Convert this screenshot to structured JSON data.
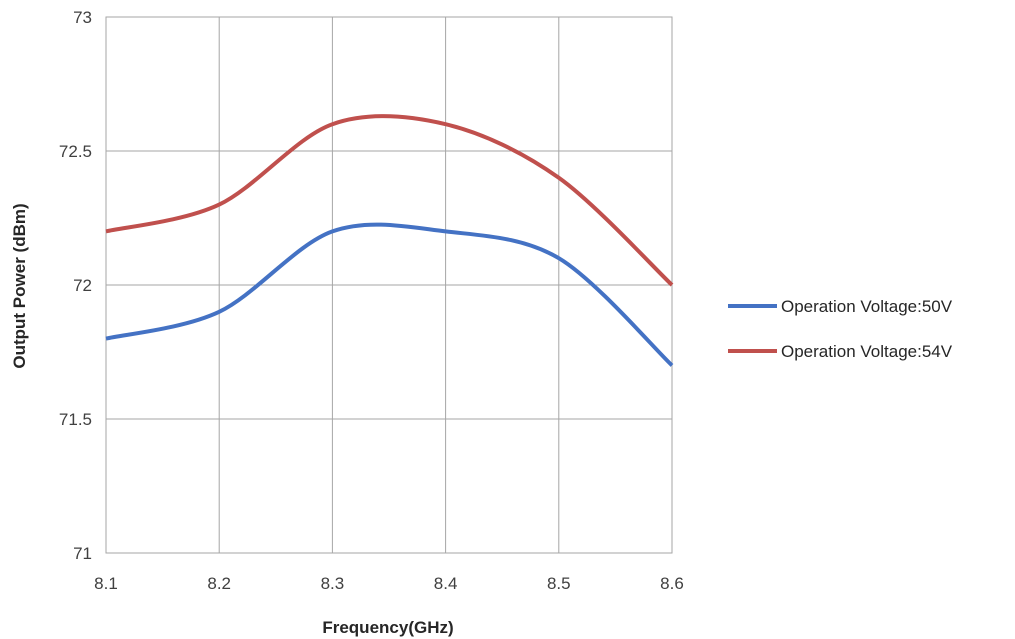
{
  "chart_data": {
    "type": "line",
    "title": "",
    "xlabel": "Frequency(GHz)",
    "ylabel": "Output Power (dBm)",
    "x": [
      8.1,
      8.2,
      8.3,
      8.4,
      8.5,
      8.6
    ],
    "x_ticks": [
      "8.1",
      "8.2",
      "8.3",
      "8.4",
      "8.5",
      "8.6"
    ],
    "xlim": [
      8.1,
      8.6
    ],
    "ylim": [
      71,
      73
    ],
    "y_ticks": [
      "71",
      "71.5",
      "72",
      "72.5",
      "73"
    ],
    "grid": true,
    "legend_position": "right",
    "series": [
      {
        "name": "Operation Voltage:50V",
        "color": "#4472C4",
        "values": [
          71.8,
          71.9,
          72.2,
          72.2,
          72.1,
          71.7
        ]
      },
      {
        "name": "Operation Voltage:54V",
        "color": "#C0504D",
        "values": [
          72.2,
          72.3,
          72.6,
          72.6,
          72.4,
          72.0
        ]
      }
    ]
  }
}
